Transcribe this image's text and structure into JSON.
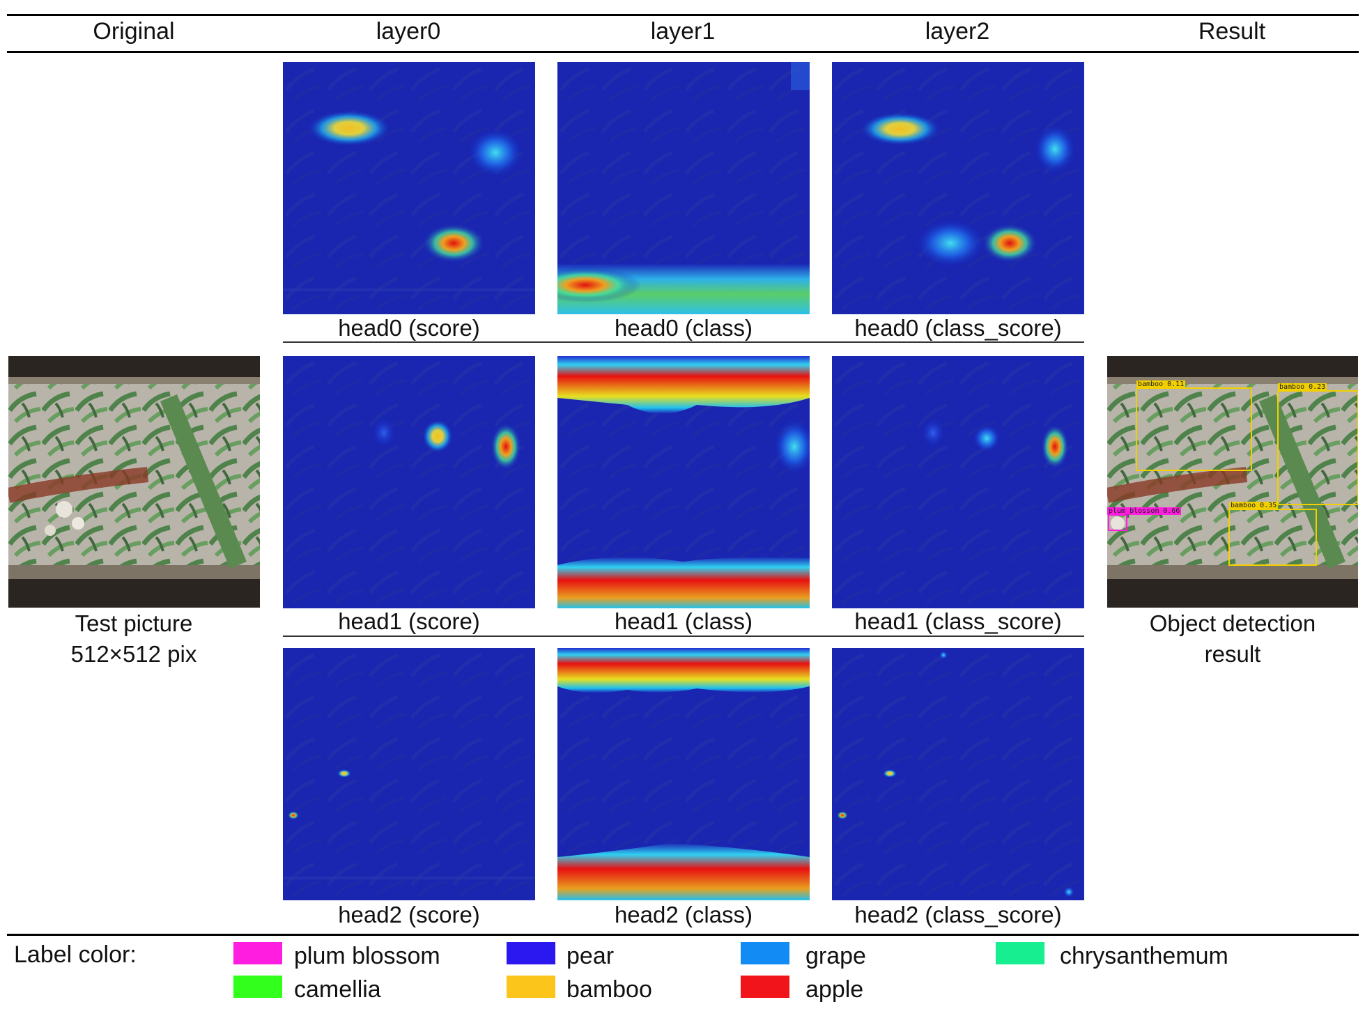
{
  "columns": {
    "original": "Original",
    "layer0": "layer0",
    "layer1": "layer1",
    "layer2": "layer2",
    "result": "Result"
  },
  "captions": {
    "row0": {
      "c0": "head0 (score)",
      "c1": "head0 (class)",
      "c2": "head0 (class_score)"
    },
    "row1": {
      "c0": "head1 (score)",
      "c1": "head1 (class)",
      "c2": "head1 (class_score)"
    },
    "row2": {
      "c0": "head2 (score)",
      "c1": "head2 (class)",
      "c2": "head2 (class_score)"
    }
  },
  "test_picture": {
    "line1": "Test picture",
    "line2": "512×512 pix"
  },
  "result_caption": {
    "line1": "Object detection",
    "line2": "result"
  },
  "detections": [
    {
      "label": "bamboo 0.11",
      "color": "#f2d000"
    },
    {
      "label": "bamboo 0.23",
      "color": "#f2d000"
    },
    {
      "label": "plum_blossom 0.66",
      "color": "#ff1de0"
    },
    {
      "label": "bamboo 0.35",
      "color": "#f2d000"
    }
  ],
  "legend": {
    "title": "Label color:",
    "items": [
      {
        "name": "plum blossom",
        "color": "#ff1de0"
      },
      {
        "name": "pear",
        "color": "#2b17ef"
      },
      {
        "name": "grape",
        "color": "#128cf4"
      },
      {
        "name": "chrysanthemum",
        "color": "#17ee90"
      },
      {
        "name": "camellia",
        "color": "#33ff1d"
      },
      {
        "name": "bamboo",
        "color": "#fcc51c"
      },
      {
        "name": "apple",
        "color": "#f1141a"
      }
    ]
  }
}
